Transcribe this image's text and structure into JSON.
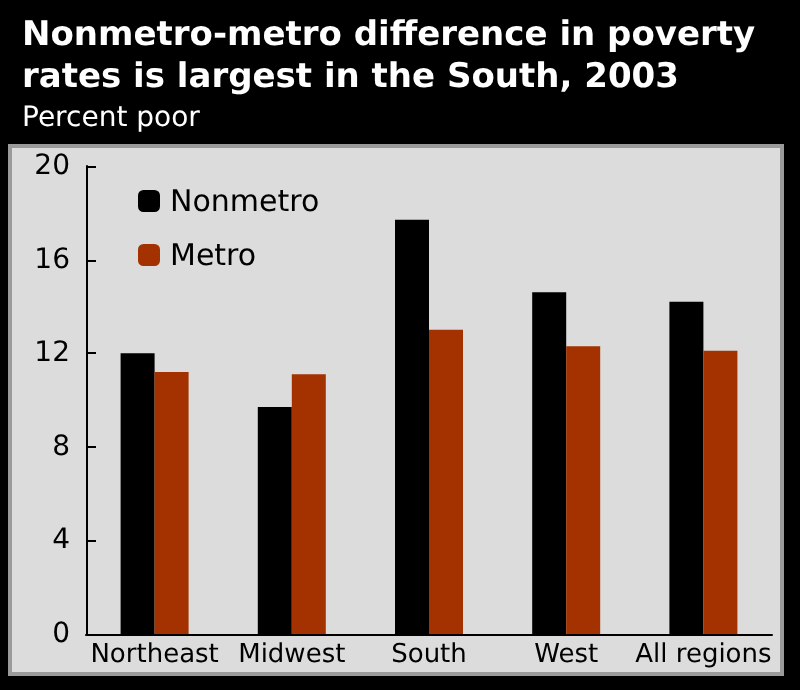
{
  "chart_data": {
    "type": "bar",
    "title": "Nonmetro-metro difference in poverty rates is largest in the South, 2003",
    "subtitle": "Percent poor",
    "categories": [
      "Northeast",
      "Midwest",
      "South",
      "West",
      "All regions"
    ],
    "series": [
      {
        "name": "Nonmetro",
        "color": "#000000",
        "values": [
          12.0,
          9.7,
          17.7,
          14.6,
          14.2
        ]
      },
      {
        "name": "Metro",
        "color": "#a33200",
        "values": [
          11.2,
          11.1,
          13.0,
          12.3,
          12.1
        ]
      }
    ],
    "ylim": [
      0,
      20
    ],
    "yticks": [
      0,
      4,
      8,
      12,
      16,
      20
    ],
    "grid": false,
    "legend": "top left"
  }
}
